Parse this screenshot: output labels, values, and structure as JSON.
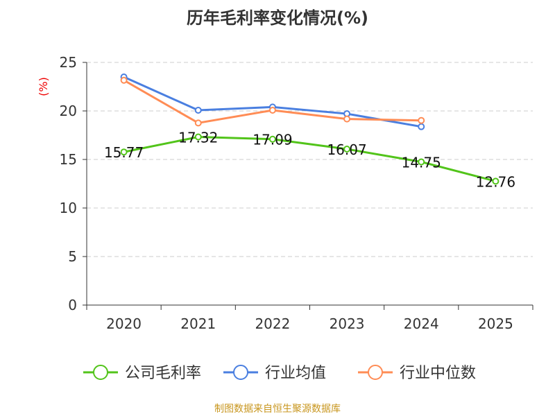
{
  "chart_data": {
    "type": "line",
    "title": "历年毛利率变化情况(%)",
    "ylabel": "(%)",
    "categories": [
      "2020",
      "2021",
      "2022",
      "2023",
      "2024",
      "2025"
    ],
    "ylim": [
      0,
      25
    ],
    "yticks": [
      0,
      5,
      10,
      15,
      20,
      25
    ],
    "grid": true,
    "legend_position": "bottom",
    "series": [
      {
        "name": "公司毛利率",
        "color": "#52c41a",
        "values": [
          15.77,
          17.32,
          17.09,
          16.07,
          14.75,
          12.76
        ],
        "labels": [
          "15.77",
          "17.32",
          "17.09",
          "16.07",
          "14.75",
          "12.76"
        ]
      },
      {
        "name": "行业均值",
        "color": "#4a7fe0",
        "values": [
          23.5,
          20.07,
          20.4,
          19.71,
          18.38,
          null
        ]
      },
      {
        "name": "行业中位数",
        "color": "#ff8c55",
        "values": [
          23.16,
          18.76,
          20.07,
          19.17,
          19.02,
          null
        ]
      }
    ]
  },
  "source": "制图数据来自恒生聚源数据库"
}
